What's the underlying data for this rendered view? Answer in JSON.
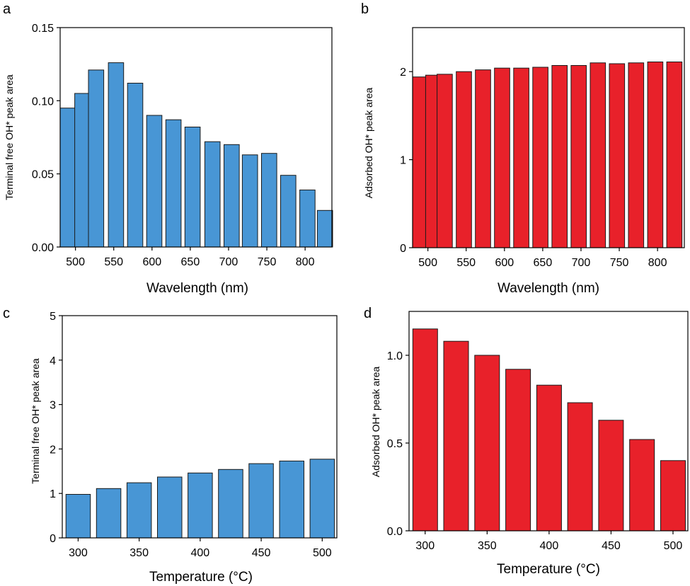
{
  "colors": {
    "blue": "#4896d5",
    "red": "#e8212a",
    "stroke": "#1a1a1a"
  },
  "chart_data": [
    {
      "panel": "a",
      "type": "bar",
      "color": "blue",
      "xlabel": "Wavelength (nm)",
      "ylabel": "Terminal free OH* peak area",
      "xlim": [
        480,
        835
      ],
      "ylim": [
        0,
        0.15
      ],
      "bar_width": 20,
      "x_ticks": [
        500,
        550,
        600,
        650,
        700,
        750,
        800
      ],
      "x_tick_labels": [
        "500",
        "550",
        "600",
        "650",
        "700",
        "750",
        "800"
      ],
      "y_ticks": [
        0,
        0.05,
        0.1,
        0.15
      ],
      "y_tick_labels": [
        "0.00",
        "0.05",
        "0.10",
        "0.15"
      ],
      "x": [
        490,
        509,
        527,
        553,
        578,
        603,
        628,
        653,
        679,
        704,
        728,
        753,
        778,
        803,
        826
      ],
      "values": [
        0.095,
        0.105,
        0.121,
        0.126,
        0.112,
        0.09,
        0.087,
        0.082,
        0.072,
        0.07,
        0.063,
        0.064,
        0.049,
        0.039,
        0.025
      ]
    },
    {
      "panel": "b",
      "type": "bar",
      "color": "red",
      "xlabel": "Wavelength (nm)",
      "ylabel": "Adsorbed OH* peak area",
      "xlim": [
        480,
        835
      ],
      "ylim": [
        0,
        2.5
      ],
      "bar_width": 20,
      "x_ticks": [
        500,
        550,
        600,
        650,
        700,
        750,
        800
      ],
      "x_tick_labels": [
        "500",
        "550",
        "600",
        "650",
        "700",
        "750",
        "800"
      ],
      "y_ticks": [
        0,
        1,
        2
      ],
      "y_tick_labels": [
        "0",
        "1",
        "2"
      ],
      "x": [
        490,
        507,
        522,
        547,
        572,
        597,
        622,
        647,
        672,
        697,
        722,
        747,
        772,
        797,
        822
      ],
      "values": [
        1.94,
        1.96,
        1.97,
        2.0,
        2.02,
        2.04,
        2.04,
        2.05,
        2.07,
        2.07,
        2.1,
        2.09,
        2.1,
        2.11,
        2.11
      ]
    },
    {
      "panel": "c",
      "type": "bar",
      "color": "blue",
      "xlabel": "Temperature (°C)",
      "ylabel": "Terminal free OH* peak area",
      "xlim": [
        287,
        512
      ],
      "ylim": [
        0,
        5
      ],
      "bar_width": 20,
      "x_ticks": [
        300,
        350,
        400,
        450,
        500
      ],
      "x_tick_labels": [
        "300",
        "350",
        "400",
        "450",
        "500"
      ],
      "y_ticks": [
        0,
        1,
        2,
        3,
        4,
        5
      ],
      "y_tick_labels": [
        "0",
        "1",
        "2",
        "3",
        "4",
        "5"
      ],
      "x": [
        300,
        325,
        350,
        375,
        400,
        425,
        450,
        475,
        500
      ],
      "values": [
        0.98,
        1.11,
        1.24,
        1.37,
        1.46,
        1.54,
        1.67,
        1.73,
        1.77
      ]
    },
    {
      "panel": "d",
      "type": "bar",
      "color": "red",
      "xlabel": "Temperature (°C)",
      "ylabel": "Adsorbed OH* peak area",
      "xlim": [
        287,
        512
      ],
      "ylim": [
        0,
        1.25
      ],
      "bar_width": 20,
      "x_ticks": [
        300,
        350,
        400,
        450,
        500
      ],
      "x_tick_labels": [
        "300",
        "350",
        "400",
        "450",
        "500"
      ],
      "y_ticks": [
        0,
        0.5,
        1.0
      ],
      "y_tick_labels": [
        "0.0",
        "0.5",
        "1.0"
      ],
      "x": [
        300,
        325,
        350,
        375,
        400,
        425,
        450,
        475,
        500
      ],
      "values": [
        1.15,
        1.08,
        1.0,
        0.92,
        0.83,
        0.73,
        0.63,
        0.52,
        0.4
      ]
    }
  ]
}
